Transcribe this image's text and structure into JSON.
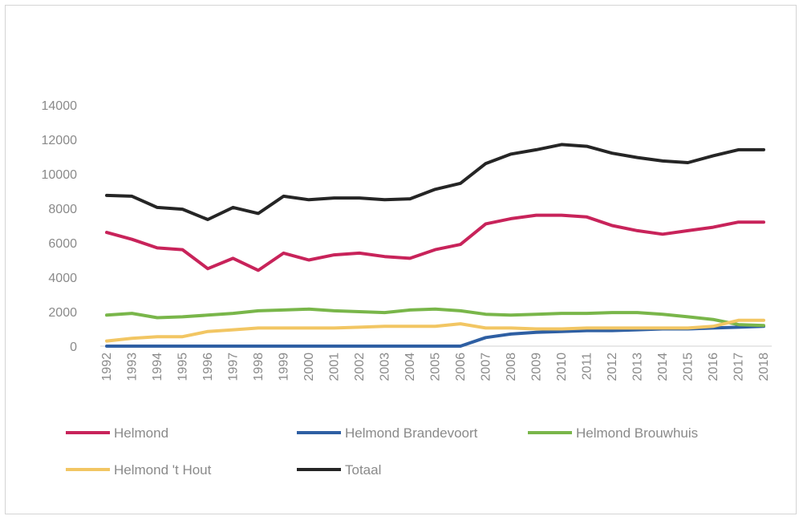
{
  "chart_data": {
    "type": "line",
    "title": "",
    "xlabel": "",
    "ylabel": "",
    "ylim": [
      0,
      14000
    ],
    "yticks": [
      "0",
      "2000",
      "4000",
      "6000",
      "8000",
      "10000",
      "12000",
      "14000"
    ],
    "grid": false,
    "legend_position": "bottom",
    "x": [
      "1992",
      "1993",
      "1994",
      "1995",
      "1996",
      "1997",
      "1998",
      "1999",
      "2000",
      "2001",
      "2002",
      "2003",
      "2004",
      "2005",
      "2006",
      "2007",
      "2008",
      "2009",
      "2010",
      "2011",
      "2012",
      "2013",
      "2014",
      "2015",
      "2016",
      "2017",
      "2018"
    ],
    "series": [
      {
        "name": "Helmond",
        "color": "#c8235a",
        "values": [
          6600,
          6200,
          5700,
          5600,
          4500,
          5100,
          4400,
          5400,
          5000,
          5300,
          5400,
          5200,
          5100,
          5600,
          5900,
          7100,
          7400,
          7600,
          7600,
          7500,
          7000,
          6700,
          6500,
          6700,
          6900,
          7200,
          7200
        ]
      },
      {
        "name": "Helmond Brandevoort",
        "color": "#2e5fa3",
        "values": [
          0,
          0,
          0,
          0,
          0,
          0,
          0,
          0,
          0,
          0,
          0,
          0,
          0,
          0,
          0,
          500,
          700,
          800,
          850,
          900,
          900,
          950,
          1000,
          1000,
          1050,
          1100,
          1150
        ]
      },
      {
        "name": "Helmond Brouwhuis",
        "color": "#79b64a",
        "values": [
          1800,
          1900,
          1650,
          1700,
          1800,
          1900,
          2050,
          2100,
          2150,
          2050,
          2000,
          1950,
          2100,
          2150,
          2050,
          1850,
          1800,
          1850,
          1900,
          1900,
          1950,
          1950,
          1850,
          1700,
          1550,
          1250,
          1200
        ]
      },
      {
        "name": "Helmond 't Hout",
        "color": "#f2c663",
        "values": [
          300,
          450,
          550,
          550,
          850,
          950,
          1050,
          1050,
          1050,
          1050,
          1100,
          1150,
          1150,
          1150,
          1300,
          1050,
          1050,
          1000,
          1000,
          1050,
          1050,
          1050,
          1050,
          1050,
          1150,
          1500,
          1500
        ]
      },
      {
        "name": "Totaal",
        "color": "#252525",
        "values": [
          8750,
          8700,
          8050,
          7950,
          7350,
          8050,
          7700,
          8700,
          8500,
          8600,
          8600,
          8500,
          8550,
          9100,
          9450,
          10600,
          11150,
          11400,
          11700,
          11600,
          11200,
          10950,
          10750,
          10650,
          11050,
          11400,
          11400
        ]
      }
    ]
  }
}
